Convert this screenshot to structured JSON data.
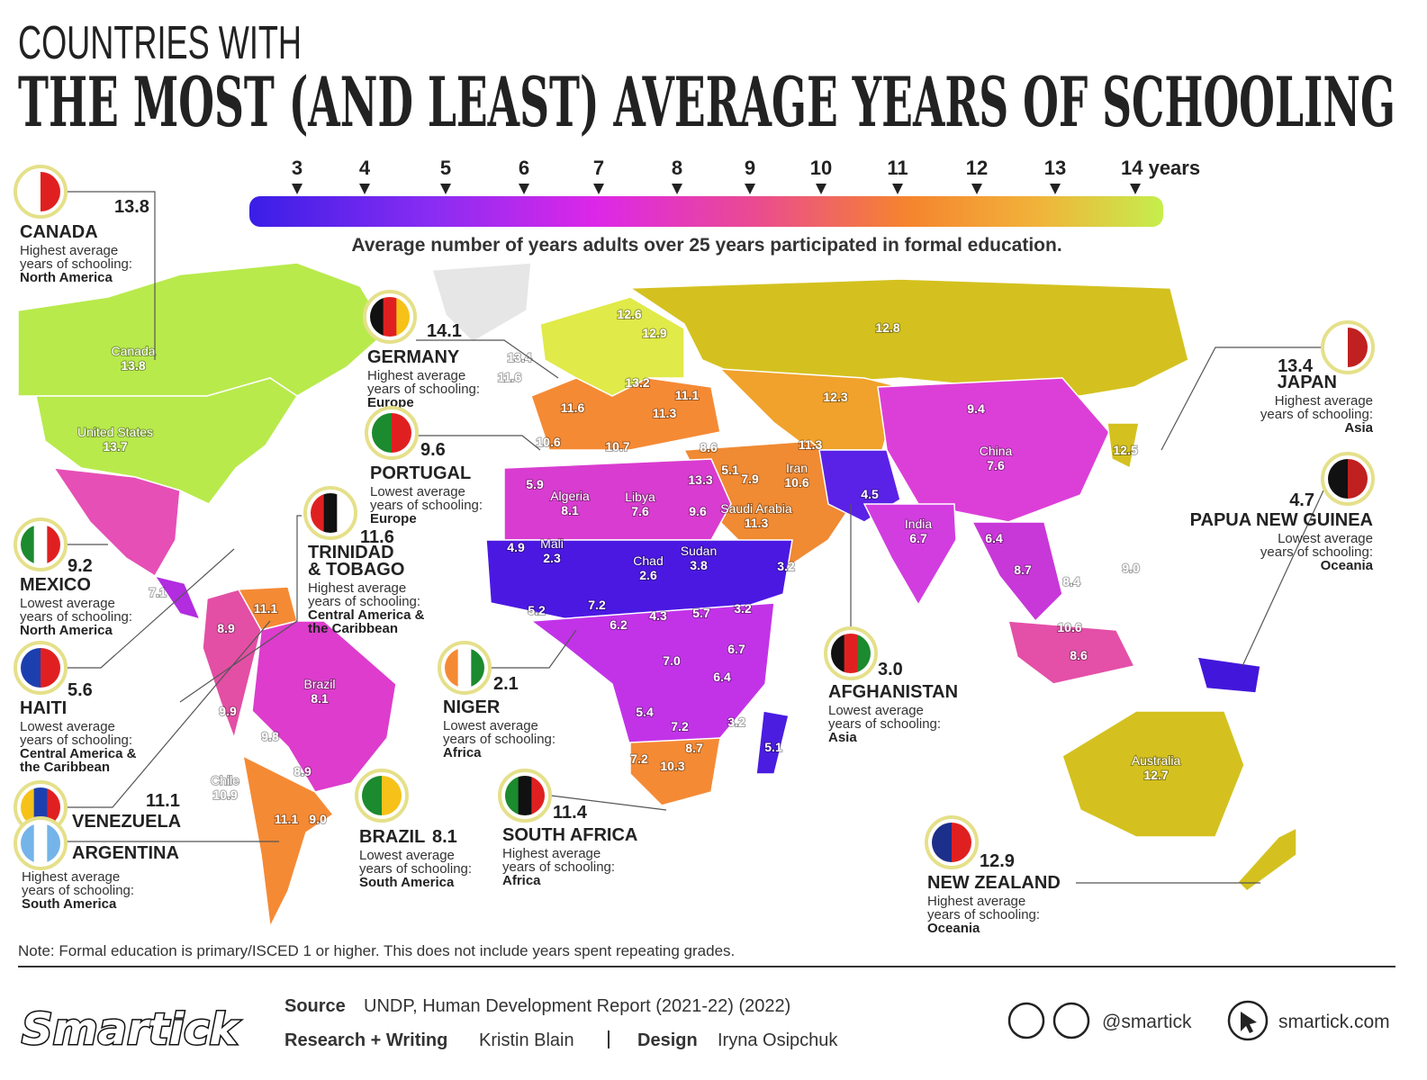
{
  "header": {
    "kicker": "COUNTRIES WITH",
    "title": "THE MOST (AND LEAST) AVERAGE YEARS OF SCHOOLING"
  },
  "legend": {
    "ticks": [
      "3",
      "4",
      "5",
      "6",
      "7",
      "8",
      "9",
      "10",
      "11",
      "12",
      "13",
      "14 years"
    ],
    "caption": "Average number of years adults over 25 years participated in formal education."
  },
  "callouts": [
    {
      "value": "13.8",
      "name": [
        "CANADA"
      ],
      "desc": [
        "Highest average",
        "years of schooling:"
      ],
      "region": [
        "North America"
      ]
    },
    {
      "value": "14.1",
      "name": [
        "GERMANY"
      ],
      "desc": [
        "Highest average",
        "years of schooling:"
      ],
      "region": [
        "Europe"
      ]
    },
    {
      "value": "9.6",
      "name": [
        "PORTUGAL"
      ],
      "desc": [
        "Lowest average",
        "years of schooling:"
      ],
      "region": [
        "Europe"
      ]
    },
    {
      "value": "11.6",
      "name": [
        "TRINIDAD",
        "& TOBAGO"
      ],
      "desc": [
        "Highest average",
        "years of schooling:"
      ],
      "region": [
        "Central America &",
        "the Caribbean"
      ]
    },
    {
      "value": "9.2",
      "name": [
        "MEXICO"
      ],
      "desc": [
        "Lowest average",
        "years of schooling:"
      ],
      "region": [
        "North America"
      ]
    },
    {
      "value": "5.6",
      "name": [
        "HAITI"
      ],
      "desc": [
        "Lowest average",
        "years of schooling:"
      ],
      "region": [
        "Central America &",
        "the Caribbean"
      ]
    },
    {
      "value": "11.1",
      "name": [
        "VENEZUELA"
      ]
    },
    {
      "name": [
        "ARGENTINA"
      ],
      "desc": [
        "Highest average",
        "years of schooling:"
      ],
      "region": [
        "South America"
      ]
    },
    {
      "value": "2.1",
      "name": [
        "NIGER"
      ],
      "desc": [
        "Lowest average",
        "years of schooling:"
      ],
      "region": [
        "Africa"
      ]
    },
    {
      "value": "8.1",
      "name": [
        "BRAZIL"
      ],
      "desc": [
        "Lowest average",
        "years of schooling:"
      ],
      "region": [
        "South America"
      ]
    },
    {
      "value": "11.4",
      "name": [
        "SOUTH AFRICA"
      ],
      "desc": [
        "Highest average",
        "years of schooling:"
      ],
      "region": [
        "Africa"
      ]
    },
    {
      "value": "3.0",
      "name": [
        "AFGHANISTAN"
      ],
      "desc": [
        "Lowest average",
        "years of schooling:"
      ],
      "region": [
        "Asia"
      ]
    },
    {
      "value": "13.4",
      "name": [
        "JAPAN"
      ],
      "desc": [
        "Highest average",
        "years of schooling:"
      ],
      "region": [
        "Asia"
      ]
    },
    {
      "value": "4.7",
      "name": [
        "PAPUA NEW GUINEA"
      ],
      "desc": [
        "Lowest average",
        "years of schooling:"
      ],
      "region": [
        "Oceania"
      ]
    },
    {
      "value": "12.9",
      "name": [
        "NEW ZEALAND"
      ],
      "desc": [
        "Highest average",
        "years of schooling:"
      ],
      "region": [
        "Oceania"
      ]
    }
  ],
  "map_labels": [
    {
      "name": "Canada",
      "value": "13.8"
    },
    {
      "name": "United States",
      "value": "13.7"
    },
    {
      "name": "Brazil",
      "value": "8.1"
    },
    {
      "name": "Chile",
      "value": "10.9"
    },
    {
      "name": "Algeria",
      "value": "8.1"
    },
    {
      "name": "Libya",
      "value": "7.6"
    },
    {
      "name": "Mali",
      "value": "2.3"
    },
    {
      "name": "Chad",
      "value": "2.6"
    },
    {
      "name": "Sudan",
      "value": "3.8"
    },
    {
      "name": "Saudi Arabia",
      "value": "11.3"
    },
    {
      "name": "Iran",
      "value": "10.6"
    },
    {
      "name": "India",
      "value": "6.7"
    },
    {
      "name": "China",
      "value": "7.6"
    },
    {
      "name": "Australia",
      "value": "12.7"
    },
    {
      "value": "12.8"
    },
    {
      "value": "12.3"
    },
    {
      "value": "9.4"
    },
    {
      "value": "12.5"
    },
    {
      "value": "12.6"
    },
    {
      "value": "12.9"
    },
    {
      "value": "13.4"
    },
    {
      "value": "11.6"
    },
    {
      "value": "13.2"
    },
    {
      "value": "11.1"
    },
    {
      "value": "11.6"
    },
    {
      "value": "11.3"
    },
    {
      "value": "10.6"
    },
    {
      "value": "10.7"
    },
    {
      "value": "8.6"
    },
    {
      "value": "13.3"
    },
    {
      "value": "5.1"
    },
    {
      "value": "7.9"
    },
    {
      "value": "9.6"
    },
    {
      "value": "11.3"
    },
    {
      "value": "4.5"
    },
    {
      "value": "3.2"
    },
    {
      "value": "6.4"
    },
    {
      "value": "8.7"
    },
    {
      "value": "8.4"
    },
    {
      "value": "9.0"
    },
    {
      "value": "10.6"
    },
    {
      "value": "8.6"
    },
    {
      "value": "5.9"
    },
    {
      "value": "4.9"
    },
    {
      "value": "5.2"
    },
    {
      "value": "7.2"
    },
    {
      "value": "6.2"
    },
    {
      "value": "4.3"
    },
    {
      "value": "5.7"
    },
    {
      "value": "3.2"
    },
    {
      "value": "6.7"
    },
    {
      "value": "7.0"
    },
    {
      "value": "6.4"
    },
    {
      "value": "5.4"
    },
    {
      "value": "7.2"
    },
    {
      "value": "3.2"
    },
    {
      "value": "8.7"
    },
    {
      "value": "5.1"
    },
    {
      "value": "7.2"
    },
    {
      "value": "10.3"
    },
    {
      "value": "7.1"
    },
    {
      "value": "11.1"
    },
    {
      "value": "8.9"
    },
    {
      "value": "9.9"
    },
    {
      "value": "9.8"
    },
    {
      "value": "8.9"
    },
    {
      "value": "11.1"
    },
    {
      "value": "9.0"
    }
  ],
  "note": "Note: Formal education is primary/ISCED 1 or higher. This does not include years spent repeating grades.",
  "footer": {
    "logo": "Smartick",
    "source_label": "Source",
    "source": "UNDP, Human Development Report (2021-22) (2022)",
    "research_label": "Research + Writing",
    "research": "Kristin Blain",
    "design_label": "Design",
    "design": "Iryna Osipchuk",
    "social": "@smartick",
    "website": "smartick.com"
  }
}
